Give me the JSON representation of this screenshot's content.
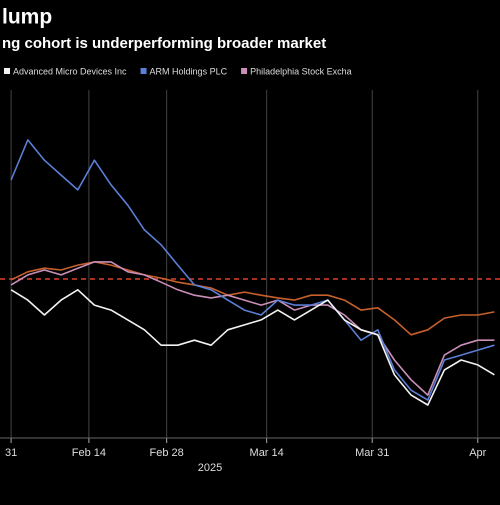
{
  "chart_data": {
    "type": "line",
    "title": "lump",
    "subtitle": "ng cohort is underperforming broader market",
    "xlabel": "2025",
    "x": [
      0,
      3,
      6,
      9,
      12,
      15,
      18,
      21,
      24,
      27,
      30,
      33,
      36,
      39,
      42,
      45,
      48,
      51,
      54,
      57,
      60,
      63,
      66,
      69,
      72,
      75,
      78,
      81,
      84,
      87
    ],
    "xlim": [
      -2,
      88
    ],
    "xticks": [
      {
        "value": 0,
        "label": "31"
      },
      {
        "value": 14,
        "label": "Feb 14"
      },
      {
        "value": 28,
        "label": "Feb 28"
      },
      {
        "value": 46,
        "label": "Mar 14"
      },
      {
        "value": 65,
        "label": "Mar 31"
      },
      {
        "value": 84,
        "label": "Apr"
      }
    ],
    "ylim": [
      62,
      142
    ],
    "baseline": 100,
    "baseline_color": "#e0402a",
    "grid": true,
    "legend": "top-left",
    "series": [
      {
        "name": "Advanced Micro Devices Inc",
        "color": "#f2f2f2",
        "values": [
          97.6,
          95.3,
          92,
          95.3,
          97.6,
          94.2,
          93.1,
          90.9,
          88.7,
          85.3,
          85.3,
          86.4,
          85.3,
          88.7,
          89.8,
          90.9,
          93.1,
          90.9,
          93.1,
          95.3,
          90.9,
          88.7,
          87.6,
          78.7,
          74.2,
          72,
          79.8,
          82,
          80.9,
          78.7
        ]
      },
      {
        "name": "ARM Holdings PLC",
        "color": "#5b7fd6",
        "values": [
          122,
          130.9,
          126.4,
          123.1,
          119.8,
          126.4,
          120.9,
          116.4,
          110.9,
          107.6,
          103.1,
          98.7,
          97.6,
          95.3,
          93.1,
          92,
          95.3,
          94.2,
          94.2,
          95.3,
          90.9,
          86.4,
          88.7,
          79.8,
          75.3,
          73.1,
          82,
          83.1,
          84.2,
          85.3
        ]
      },
      {
        "name": "Philadelphia Stock Excha",
        "color": "#c98fb8",
        "values": [
          98.7,
          100.9,
          102,
          100.9,
          102.4,
          103.8,
          103.8,
          101.6,
          100.9,
          99.3,
          97.6,
          96.4,
          95.8,
          96.4,
          95.3,
          94.2,
          95.3,
          93.1,
          94.2,
          94.2,
          92,
          88.7,
          87.6,
          82,
          77.6,
          74.2,
          83.1,
          85.3,
          86.4,
          86.4
        ]
      },
      {
        "color": "#c7602a",
        "values": [
          99.8,
          101.6,
          102.4,
          102,
          103.1,
          103.8,
          103.1,
          102,
          100.9,
          100.2,
          99.3,
          98.7,
          98,
          96.4,
          97.1,
          96.4,
          95.8,
          95.3,
          96.4,
          96.4,
          95.3,
          93.1,
          93.6,
          90.9,
          87.6,
          88.7,
          91.3,
          92,
          92,
          92.7
        ]
      }
    ]
  }
}
